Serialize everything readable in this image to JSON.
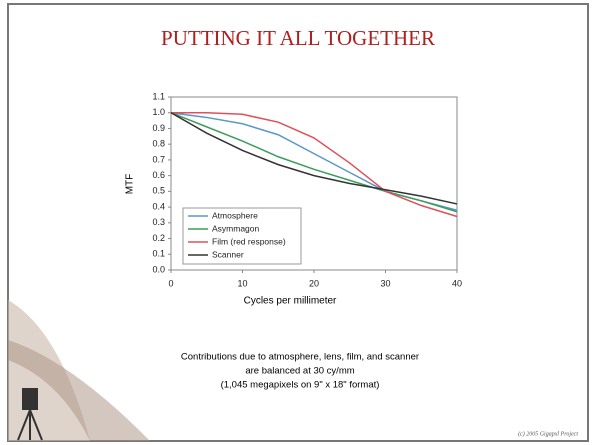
{
  "slide": {
    "title": "PUTTING IT ALL TOGETHER",
    "caption": [
      "Contributions due to atmosphere, lens, film, and scanner",
      "are balanced at 30 cy/mm",
      "(1,045 megapixels on 9\" x 18\" format)"
    ],
    "footer": "(c) 2005 Gigapxl Project"
  },
  "chart_data": {
    "type": "line",
    "xlabel": "Cycles per millimeter",
    "ylabel": "MTF",
    "x": [
      0,
      5,
      10,
      15,
      20,
      25,
      30,
      35,
      40
    ],
    "series": [
      {
        "name": "Atmosphere",
        "color": "#5b96cc",
        "values": [
          1.0,
          0.97,
          0.93,
          0.86,
          0.74,
          0.62,
          0.5,
          0.44,
          0.38
        ]
      },
      {
        "name": "Asymmagon",
        "color": "#3a9e5a",
        "values": [
          1.0,
          0.91,
          0.82,
          0.72,
          0.64,
          0.57,
          0.5,
          0.44,
          0.37
        ]
      },
      {
        "name": "Film (red response)",
        "color": "#e0505a",
        "values": [
          1.0,
          1.0,
          0.99,
          0.94,
          0.84,
          0.68,
          0.5,
          0.41,
          0.34
        ]
      },
      {
        "name": "Scanner",
        "color": "#333333",
        "values": [
          1.0,
          0.87,
          0.76,
          0.67,
          0.6,
          0.55,
          0.51,
          0.47,
          0.42
        ]
      }
    ],
    "xlim": [
      0,
      40
    ],
    "xticks": [
      0,
      10,
      20,
      30,
      40
    ],
    "ylim": [
      0,
      1.1
    ],
    "yticks": [
      {
        "value": 0,
        "label": "0.0"
      },
      0.1,
      0.2,
      0.3,
      0.4,
      0.5,
      0.6,
      0.7,
      0.8,
      0.9,
      {
        "value": 1,
        "label": "1.0"
      },
      1.1
    ],
    "legend": "lower-left"
  }
}
